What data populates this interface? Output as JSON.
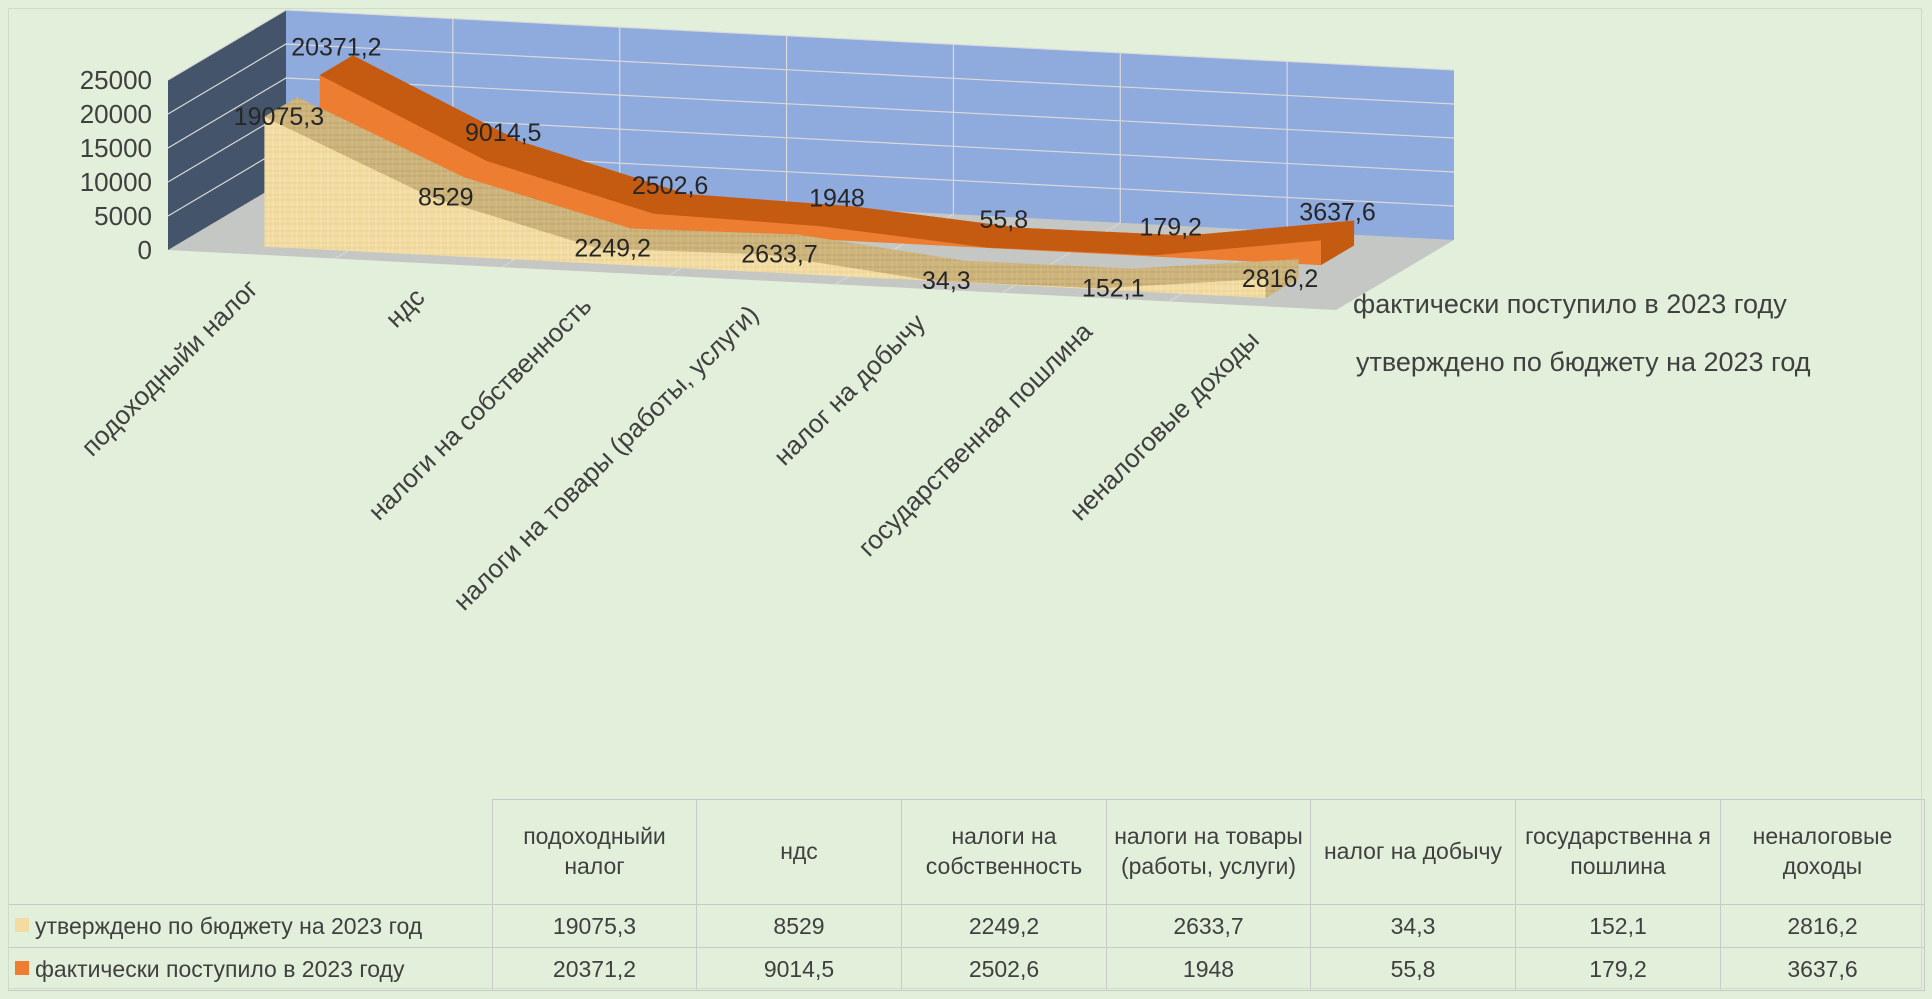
{
  "chart_data": {
    "type": "area",
    "categories": [
      "подоходныйи налог",
      "ндс",
      "налоги на собственность",
      "налоги на товары (работы, услуги)",
      "налог на добычу",
      "государственная пошлина",
      "неналоговые доходы"
    ],
    "series": [
      {
        "name": "утверждено по бюджету на 2023 год",
        "values": [
          19075.3,
          8529,
          2249.2,
          2633.7,
          34.3,
          152.1,
          2816.2
        ],
        "labels": [
          "19075,3",
          "8529",
          "2249,2",
          "2633,7",
          "34,3",
          "152,1",
          "2816,2"
        ],
        "color": "#f3dca2"
      },
      {
        "name": "фактически поступило в 2023 году",
        "values": [
          20371.2,
          9014.5,
          2502.6,
          1948,
          55.8,
          179.2,
          3637.6
        ],
        "labels": [
          "20371,2",
          "9014,5",
          "2502,6",
          "1948",
          "55,8",
          "179,2",
          "3637,6"
        ],
        "color": "#ed7d31"
      }
    ],
    "y_ticks": [
      "0",
      "5000",
      "10000",
      "15000",
      "20000",
      "25000"
    ],
    "ylim": [
      0,
      25000
    ],
    "three_d": true,
    "grid": true
  },
  "table": {
    "headers": [
      "подоходныйи налог",
      "ндс",
      "налоги на собственность",
      "налоги на товары (работы, услуги)",
      "налог на добычу",
      "государственна я пошлина",
      "неналоговые доходы"
    ],
    "rows": [
      {
        "name": "утверждено по бюджету на 2023 год",
        "cells": [
          "19075,3",
          "8529",
          "2249,2",
          "2633,7",
          "34,3",
          "152,1",
          "2816,2"
        ]
      },
      {
        "name": "фактически поступило в 2023 году",
        "cells": [
          "20371,2",
          "9014,5",
          "2502,6",
          "1948",
          "55,8",
          "179,2",
          "3637,6"
        ]
      }
    ]
  },
  "colors": {
    "background": "#e2efda",
    "back_wall": "#8faadc",
    "side_wall": "#44546a",
    "floor": "#bfbfbf",
    "approved": "#f3dca2",
    "actual": "#ed7d31"
  }
}
